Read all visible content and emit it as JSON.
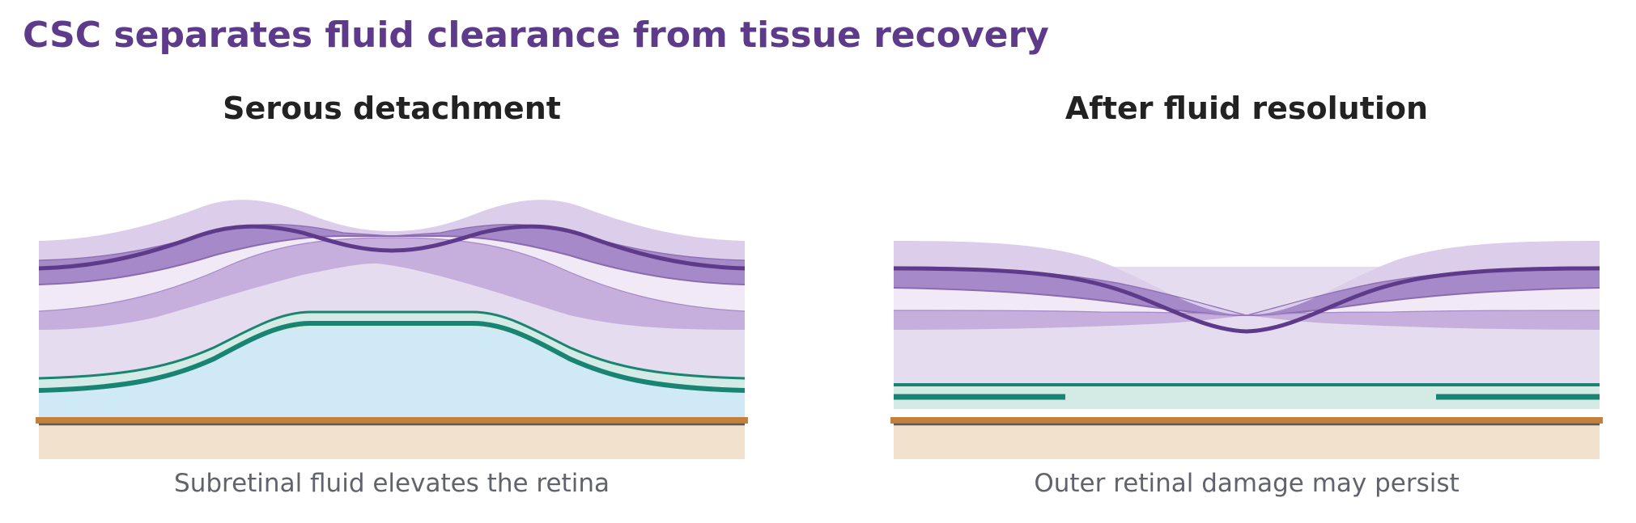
{
  "title": "CSC separates fluid clearance from tissue recovery",
  "panels": [
    {
      "heading": "Serous detachment",
      "caption": "Subretinal fluid elevates the retina"
    },
    {
      "heading": "After fluid resolution",
      "caption": "Outer retinal damage may persist"
    }
  ],
  "colors": {
    "title": "#5e3a8a",
    "retina_outline": "#5e3a8a",
    "nerve_fiber_layer": "#dccdea",
    "inner_layer": "#a689c8",
    "middle_layer": "#c6aedd",
    "outer_layer": "#e6dcef",
    "photoreceptor_line": "#1a8472",
    "subretinal_fluid": "#cfe9f7",
    "rpe": "#c47f3b",
    "choroid": "#f2e1cd"
  }
}
